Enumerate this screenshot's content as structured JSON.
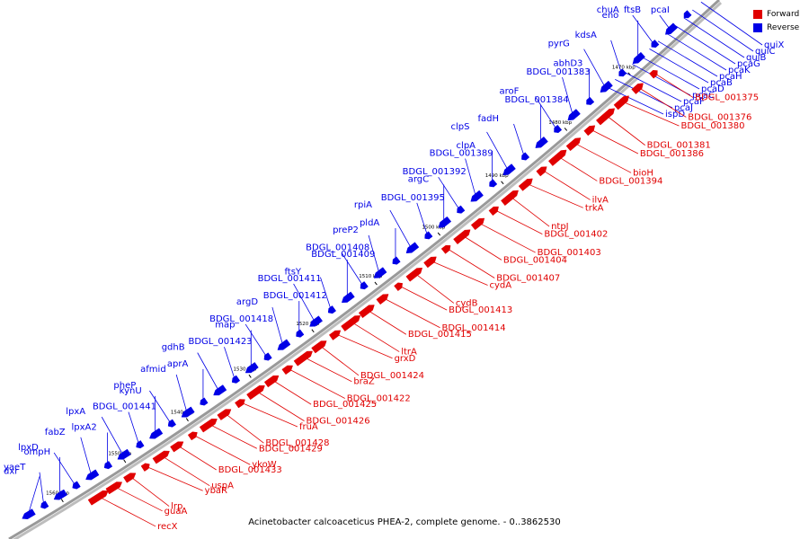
{
  "caption": "Acinetobacter calcoaceticus PHEA-2, complete genome. - 0..3862530",
  "legend": {
    "forward_label": "Forward",
    "reverse_label": "Reverse",
    "forward_color": "#e00000",
    "reverse_color": "#0000e6"
  },
  "colors": {
    "axis": "#999999",
    "axis_shadow": "#bdbdbd",
    "tick": "#000000"
  },
  "ticks": [
    "1470 kbp",
    "1480 kbp",
    "1490 kbp",
    "1500 kbp",
    "1510 kbp",
    "1520 kbp",
    "1530 kbp",
    "1540 kbp",
    "1550 kbp",
    "1560 kbp"
  ],
  "reverse_genes": [
    "pcaI",
    "ftsB",
    "chuA",
    "eno",
    "kdsA",
    "pyrG",
    "abhD3",
    "BDGL_001383",
    "aroF",
    "BDGL_001384",
    "fadH",
    "clpS",
    "clpA",
    "BDGL_001389",
    "BDGL_001392",
    "argC",
    "BDGL_001395",
    "rpiA",
    "pldA",
    "preP2",
    "BDGL_001408",
    "BDGL_001409",
    "ftsY",
    "BDGL_001411",
    "BDGL_001412",
    "argD",
    "BDGL_001418",
    "map",
    "BDGL_001423",
    "gdhB",
    "aprA",
    "afmid",
    "pheP",
    "kynU",
    "BDGL_001441",
    "lpxA",
    "lpxA2",
    "fabZ",
    "lpxD",
    "ompH",
    "yaeT",
    "dxr"
  ],
  "reverse_right_genes": [
    "quiX",
    "quiC",
    "quiB",
    "pcaG",
    "pcaK",
    "pcaH",
    "pcaB",
    "pcaD",
    "pcaC",
    "pcaF",
    "pcaJ",
    "ispD"
  ],
  "forward_genes": [
    "BDGL_001375",
    "BDGL_001376",
    "BDGL_001380",
    "BDGL_001381",
    "BDGL_001386",
    "bioH",
    "BDGL_001394",
    "ilvA",
    "trkA",
    "ntpJ",
    "BDGL_001402",
    "BDGL_001403",
    "BDGL_001404",
    "BDGL_001407",
    "cydA",
    "cydB",
    "BDGL_001413",
    "BDGL_001414",
    "BDGL_001415",
    "ltrA",
    "grxD",
    "BDGL_001424",
    "braZ",
    "BDGL_001422",
    "BDGL_001425",
    "BDGL_001426",
    "fruA",
    "BDGL_001428",
    "BDGL_001429",
    "ykoW",
    "BDGL_001433",
    "uspA",
    "ybaR",
    "lrp",
    "guaA",
    "recX"
  ]
}
